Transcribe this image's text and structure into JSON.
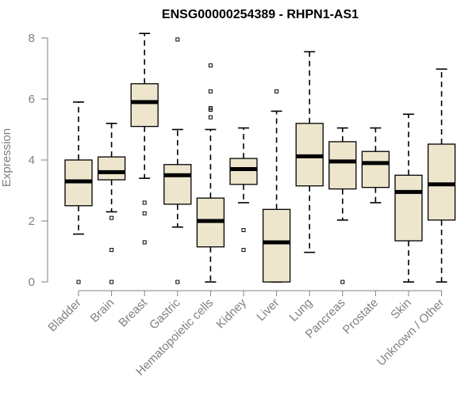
{
  "chart_data": {
    "type": "boxplot",
    "title": "ENSG00000254389 - RHPN1-AS1",
    "xlabel": "",
    "ylabel": "Expression",
    "ylim": [
      0,
      8
    ],
    "yticks": [
      0,
      2,
      4,
      6,
      8
    ],
    "categories": [
      "Bladder",
      "Brain",
      "Breast",
      "Gastric",
      "Hematopoietic cells",
      "Kidney",
      "Liver",
      "Lung",
      "Pancreas",
      "Prostate",
      "Skin",
      "Unknown / Other"
    ],
    "boxes": [
      {
        "min": 1.57,
        "q1": 2.5,
        "median": 3.3,
        "q3": 4.0,
        "max": 5.9,
        "outliers": [
          0.0
        ]
      },
      {
        "min": 2.3,
        "q1": 3.35,
        "median": 3.6,
        "q3": 4.1,
        "max": 5.2,
        "outliers": [
          2.1,
          1.05,
          0.0
        ]
      },
      {
        "min": 3.4,
        "q1": 5.1,
        "median": 5.9,
        "q3": 6.5,
        "max": 8.15,
        "outliers": [
          2.6,
          2.25,
          1.3
        ]
      },
      {
        "min": 1.8,
        "q1": 2.55,
        "median": 3.5,
        "q3": 3.85,
        "max": 5.0,
        "outliers": [
          7.95,
          0.0
        ]
      },
      {
        "min": 0.0,
        "q1": 1.15,
        "median": 2.0,
        "q3": 2.75,
        "max": 5.0,
        "outliers": [
          7.1,
          6.25,
          5.7,
          5.65,
          5.4
        ]
      },
      {
        "min": 2.6,
        "q1": 3.2,
        "median": 3.7,
        "q3": 4.05,
        "max": 5.05,
        "outliers": [
          1.7,
          1.05
        ]
      },
      {
        "min": 0.0,
        "q1": 0.0,
        "median": 1.3,
        "q3": 2.38,
        "max": 5.6,
        "outliers": [
          6.25
        ]
      },
      {
        "min": 0.97,
        "q1": 3.15,
        "median": 4.12,
        "q3": 5.2,
        "max": 7.55,
        "outliers": []
      },
      {
        "min": 2.03,
        "q1": 3.05,
        "median": 3.95,
        "q3": 4.6,
        "max": 5.05,
        "outliers": [
          0.0
        ]
      },
      {
        "min": 2.6,
        "q1": 3.1,
        "median": 3.9,
        "q3": 4.28,
        "max": 5.05,
        "outliers": []
      },
      {
        "min": 0.0,
        "q1": 1.35,
        "median": 2.95,
        "q3": 3.5,
        "max": 5.5,
        "outliers": []
      },
      {
        "min": 0.0,
        "q1": 2.03,
        "median": 3.2,
        "q3": 4.52,
        "max": 6.98,
        "outliers": []
      }
    ],
    "colors": {
      "box_fill": "#ede6cc",
      "axis": "#808080",
      "line": "#000000"
    }
  }
}
